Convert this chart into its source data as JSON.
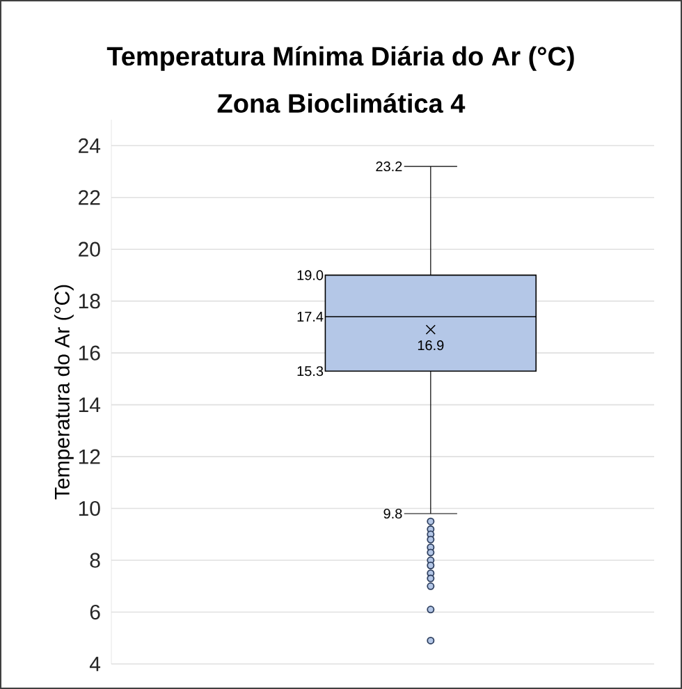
{
  "chart_data": {
    "type": "box",
    "title": "Temperatura Mínima Diária do Ar (°C)",
    "subtitle": "Zona Bioclimática 4",
    "ylabel": "Temperatura do Ar (°C)",
    "categories": [
      null
    ],
    "boxes": [
      {
        "low": 9.8,
        "q1": 15.3,
        "median": 17.4,
        "q3": 19.0,
        "high": 23.2,
        "mean": 16.9,
        "outliers": [
          9.5,
          9.2,
          9.0,
          8.8,
          8.5,
          8.3,
          8.0,
          7.8,
          7.5,
          7.3,
          7.0,
          6.1,
          4.9
        ]
      }
    ],
    "color": "#b4c7e7",
    "ylim": [
      4,
      25
    ],
    "yticks": [
      4,
      6,
      8,
      10,
      12,
      14,
      16,
      18,
      20,
      22,
      24
    ],
    "grid": "y",
    "annotations": [
      "23.2",
      "19.0",
      "17.4",
      "15.3",
      "9.8",
      "16.9"
    ]
  }
}
